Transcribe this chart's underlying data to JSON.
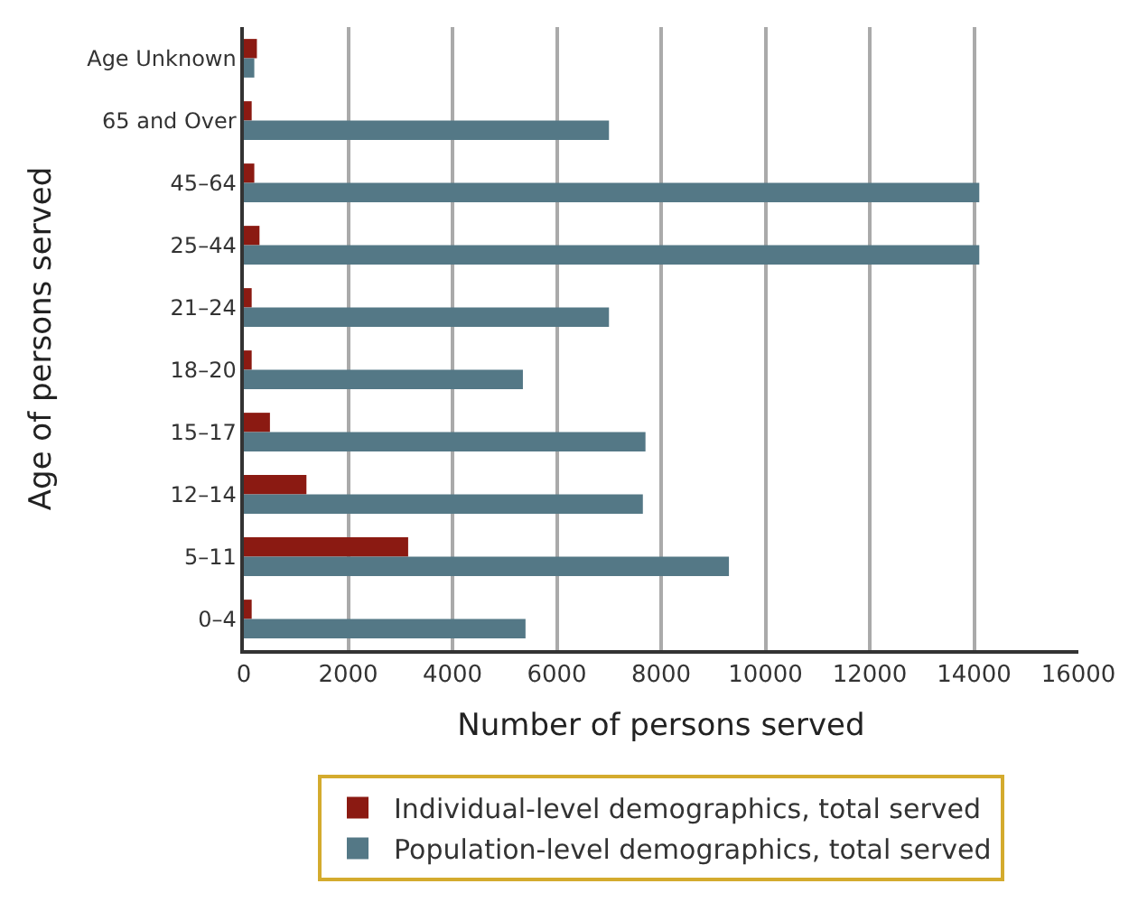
{
  "chart_data": {
    "type": "bar",
    "orientation": "horizontal",
    "xlabel": "Number of persons served",
    "ylabel": "Age of persons served",
    "categories": [
      "Age Unknown",
      "65 and Over",
      "45–64",
      "25–44",
      "21–24",
      "18–20",
      "15–17",
      "12–14",
      "5–11",
      "0–4"
    ],
    "series": [
      {
        "name": "Individual-level demographics, total served",
        "color": "#8b1a12",
        "values": [
          250,
          150,
          200,
          300,
          150,
          150,
          500,
          1200,
          3150,
          150
        ]
      },
      {
        "name": "Population-level demographics, total served",
        "color": "#547886",
        "values": [
          200,
          7000,
          14100,
          14100,
          7000,
          5350,
          7700,
          7650,
          9300,
          5400
        ]
      }
    ],
    "xlim": [
      0,
      16000
    ],
    "xticks": [
      0,
      2000,
      4000,
      6000,
      8000,
      10000,
      12000,
      14000,
      16000
    ],
    "grid": "x",
    "legend": "bottom"
  }
}
